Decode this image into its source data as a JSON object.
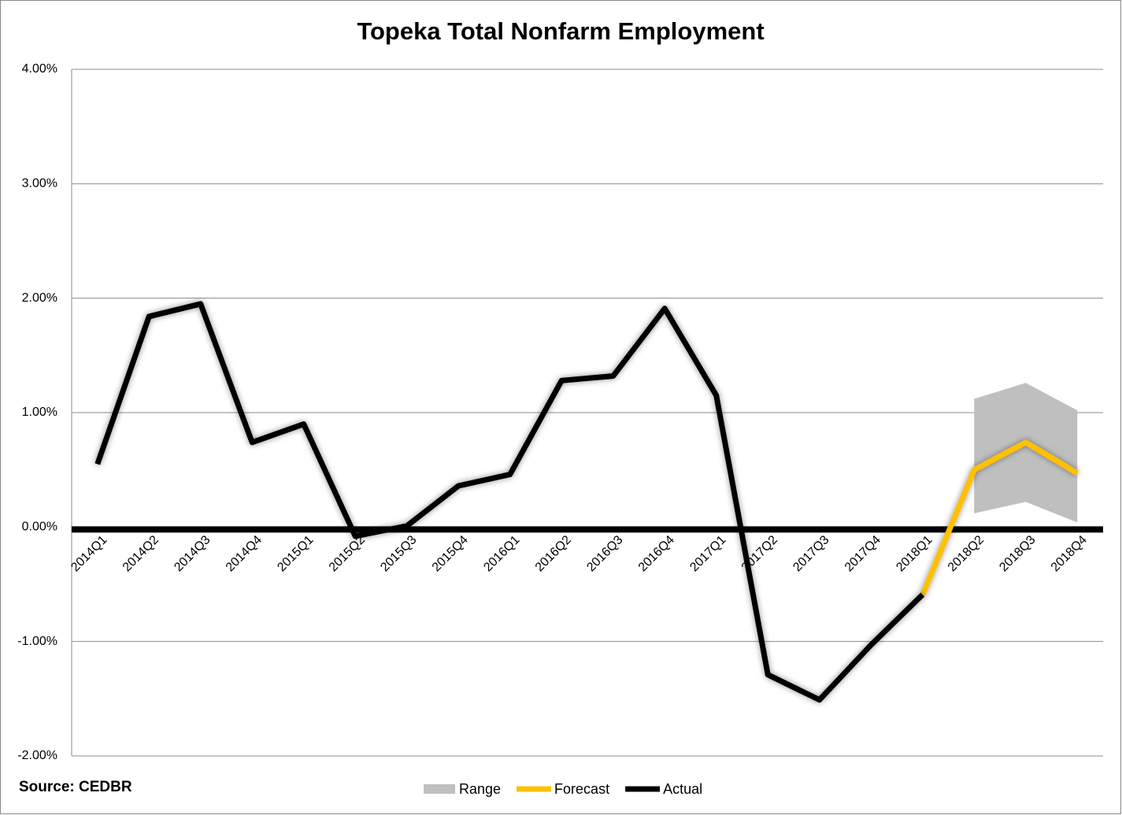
{
  "chart_data": {
    "type": "line",
    "title": "Topeka Total Nonfarm Employment",
    "source": "Source: CEDBR",
    "categories": [
      "2014Q1",
      "2014Q2",
      "2014Q3",
      "2014Q4",
      "2015Q1",
      "2015Q2",
      "2015Q3",
      "2015Q4",
      "2016Q1",
      "2016Q2",
      "2016Q3",
      "2016Q4",
      "2017Q1",
      "2017Q2",
      "2017Q3",
      "2017Q4",
      "2018Q1",
      "2018Q2",
      "2018Q3",
      "2018Q4"
    ],
    "series": [
      {
        "name": "Range",
        "color": "#bfbfbf",
        "kind": "band",
        "values": [
          null,
          null,
          null,
          null,
          null,
          null,
          null,
          null,
          null,
          null,
          null,
          null,
          null,
          null,
          null,
          null,
          null,
          1.12,
          1.26,
          1.02
        ],
        "lower": [
          null,
          null,
          null,
          null,
          null,
          null,
          null,
          null,
          null,
          null,
          null,
          null,
          null,
          null,
          null,
          null,
          null,
          0.12,
          0.22,
          0.04
        ]
      },
      {
        "name": "Forecast",
        "color": "#ffc000",
        "values": [
          null,
          null,
          null,
          null,
          null,
          null,
          null,
          null,
          null,
          null,
          null,
          null,
          null,
          null,
          null,
          null,
          -0.59,
          0.5,
          0.74,
          0.47
        ]
      },
      {
        "name": "Actual",
        "color": "#000000",
        "values": [
          0.55,
          1.84,
          1.95,
          0.74,
          0.9,
          -0.08,
          0.01,
          0.36,
          0.46,
          1.28,
          1.32,
          1.91,
          1.15,
          -1.29,
          -1.51,
          -1.03,
          -0.59,
          null,
          null,
          null
        ]
      }
    ],
    "ylim": [
      -2,
      4
    ],
    "yticks": [
      {
        "value": -2,
        "label": "-2.00%"
      },
      {
        "value": -1,
        "label": "-1.00%"
      },
      {
        "value": 0,
        "label": "0.00%"
      },
      {
        "value": 1,
        "label": "1.00%"
      },
      {
        "value": 2,
        "label": "2.00%"
      },
      {
        "value": 3,
        "label": "3.00%"
      },
      {
        "value": 4,
        "label": "4.00%"
      }
    ],
    "grid": true,
    "legend": "bottom"
  }
}
